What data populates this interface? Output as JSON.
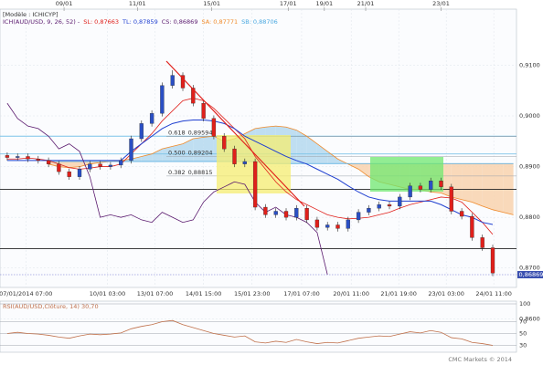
{
  "chart_data": {
    "type": "candlestick",
    "template": "[Modèle : ICHICYP]",
    "indicator": "ICH(AUD/USD, 9, 26, 52) -",
    "legend": [
      {
        "name": "SL:",
        "value": 0.87663,
        "label": "0,87663",
        "color": "#e0201b"
      },
      {
        "name": "TL:",
        "value": 0.87859,
        "label": "0,87859",
        "color": "#1f3fd0"
      },
      {
        "name": "CS:",
        "value": 0.86869,
        "label": "0,86869",
        "color": "#5a1a6e"
      },
      {
        "name": "SA:",
        "value": 0.87771,
        "label": "0,87771",
        "color": "#f08a2a"
      },
      {
        "name": "SB:",
        "value": 0.88706,
        "label": "0,88706",
        "color": "#4aa8e0"
      }
    ],
    "xlim": [
      -0.7,
      49.3
    ],
    "ylim": [
      0.86617,
      0.92106
    ],
    "yticks": [
      {
        "value": 0.86,
        "label": "0,8600"
      },
      {
        "value": 0.87,
        "label": "0,8700"
      },
      {
        "value": 0.88,
        "label": "0,8800"
      },
      {
        "value": 0.89,
        "label": "0,8900"
      },
      {
        "value": 0.9,
        "label": "0,9000"
      },
      {
        "value": 0.91,
        "label": "0,9100"
      }
    ],
    "xticks": [
      {
        "value": 1.8,
        "label": "07/01/2014 07:00"
      },
      {
        "value": 9.7,
        "label": "10/01 03:00"
      },
      {
        "value": 14.3,
        "label": "13/01 07:00"
      },
      {
        "value": 19,
        "label": "14/01 15:00"
      },
      {
        "value": 23.7,
        "label": "15/01 23:00"
      },
      {
        "value": 28.5,
        "label": "17/01 07:00"
      },
      {
        "value": 33.3,
        "label": "20/01 11:00"
      },
      {
        "value": 37.9,
        "label": "21/01 19:00"
      },
      {
        "value": 42.5,
        "label": "23/01 03:00"
      },
      {
        "value": 47.1,
        "label": "24/01 11:00"
      }
    ],
    "top_xticks": [
      {
        "value": 5.5,
        "label": "09/01"
      },
      {
        "value": 12.6,
        "label": "11/01"
      },
      {
        "value": 19.8,
        "label": "15/01"
      },
      {
        "value": 27.2,
        "label": "17/01"
      },
      {
        "value": 30.7,
        "label": "19/01"
      },
      {
        "value": 34.7,
        "label": "21/01"
      },
      {
        "value": 42,
        "label": "23/01"
      }
    ],
    "up_color": "#2a4fc4",
    "down_color": "#e0201b",
    "candles": {
      "open": [
        0.8922,
        0.8918,
        0.892,
        0.8915,
        0.8912,
        0.8905,
        0.889,
        0.888,
        0.8895,
        0.8905,
        0.89,
        0.8903,
        0.8912,
        0.8955,
        0.8985,
        0.9005,
        0.906,
        0.908,
        0.9055,
        0.9025,
        0.8995,
        0.896,
        0.8935,
        0.8905,
        0.891,
        0.882,
        0.8805,
        0.8812,
        0.88,
        0.8818,
        0.8795,
        0.878,
        0.8785,
        0.8778,
        0.8795,
        0.881,
        0.8818,
        0.8825,
        0.8822,
        0.884,
        0.8862,
        0.8855,
        0.8872,
        0.886,
        0.8812,
        0.8802,
        0.876,
        0.874
      ],
      "high": [
        0.8928,
        0.8926,
        0.8926,
        0.8921,
        0.8918,
        0.8911,
        0.8896,
        0.8901,
        0.8911,
        0.8911,
        0.8909,
        0.8918,
        0.8961,
        0.8991,
        0.9011,
        0.9066,
        0.909,
        0.9086,
        0.9061,
        0.9031,
        0.9001,
        0.8966,
        0.8941,
        0.8916,
        0.8916,
        0.8826,
        0.8818,
        0.8818,
        0.8824,
        0.8824,
        0.8801,
        0.8791,
        0.8791,
        0.8801,
        0.8816,
        0.8824,
        0.8831,
        0.8831,
        0.8846,
        0.8868,
        0.8868,
        0.8878,
        0.8878,
        0.8866,
        0.8818,
        0.8808,
        0.8766,
        0.8746
      ],
      "low": [
        0.8912,
        0.8912,
        0.8909,
        0.8906,
        0.8899,
        0.8884,
        0.8874,
        0.8874,
        0.8889,
        0.8894,
        0.8894,
        0.8897,
        0.8906,
        0.8949,
        0.8979,
        0.8999,
        0.9054,
        0.9049,
        0.9019,
        0.8989,
        0.8954,
        0.8929,
        0.8899,
        0.8899,
        0.8814,
        0.8799,
        0.8799,
        0.8794,
        0.8794,
        0.8789,
        0.8774,
        0.8774,
        0.8772,
        0.8772,
        0.8789,
        0.8804,
        0.8812,
        0.8816,
        0.8816,
        0.8834,
        0.8849,
        0.8849,
        0.8854,
        0.8806,
        0.8796,
        0.8754,
        0.8734,
        0.8684
      ],
      "close": [
        0.8918,
        0.892,
        0.8915,
        0.8912,
        0.8905,
        0.889,
        0.888,
        0.8895,
        0.8905,
        0.89,
        0.8903,
        0.8912,
        0.8955,
        0.8985,
        0.9005,
        0.906,
        0.908,
        0.9055,
        0.9025,
        0.8995,
        0.896,
        0.8935,
        0.8905,
        0.891,
        0.882,
        0.8805,
        0.8812,
        0.88,
        0.8818,
        0.8795,
        0.878,
        0.8785,
        0.8778,
        0.8795,
        0.881,
        0.8818,
        0.8825,
        0.8822,
        0.884,
        0.8862,
        0.8855,
        0.8872,
        0.886,
        0.8812,
        0.8802,
        0.876,
        0.874,
        0.869
      ]
    },
    "series": [
      {
        "color": "#e0201b",
        "values": [
          0.8915,
          0.8915,
          0.8917,
          0.8915,
          0.8912,
          0.8905,
          0.8898,
          0.8895,
          0.8897,
          0.89,
          0.89,
          0.8905,
          0.8925,
          0.8945,
          0.8965,
          0.899,
          0.901,
          0.903,
          0.9035,
          0.903,
          0.9015,
          0.8995,
          0.8975,
          0.8955,
          0.892,
          0.8895,
          0.887,
          0.885,
          0.8835,
          0.8825,
          0.8815,
          0.8805,
          0.88,
          0.8797,
          0.8798,
          0.88,
          0.8805,
          0.881,
          0.8818,
          0.8825,
          0.883,
          0.8835,
          0.884,
          0.8838,
          0.883,
          0.881,
          0.879,
          0.87663,
          null,
          null
        ]
      },
      {
        "color": "#1f3fd0",
        "values": [
          0.8912,
          0.8912,
          0.8912,
          0.8912,
          0.8912,
          0.8912,
          0.8912,
          0.8912,
          0.8912,
          0.8912,
          0.8912,
          0.8912,
          0.893,
          0.8945,
          0.896,
          0.8975,
          0.8985,
          0.899,
          0.8992,
          0.8992,
          0.899,
          0.8985,
          0.8975,
          0.896,
          0.895,
          0.894,
          0.893,
          0.892,
          0.8912,
          0.8905,
          0.8895,
          0.8885,
          0.8875,
          0.8862,
          0.885,
          0.884,
          0.8835,
          0.8832,
          0.8832,
          0.8832,
          0.8832,
          0.8832,
          0.8825,
          0.8815,
          0.8805,
          0.88,
          0.879,
          0.87859,
          null,
          null
        ]
      },
      {
        "color": "#5a1a6e",
        "values": [
          0.9025,
          0.8995,
          0.898,
          0.8975,
          0.896,
          0.8935,
          0.8945,
          0.893,
          0.888,
          0.88,
          0.8805,
          0.88,
          0.8805,
          0.8795,
          0.879,
          0.881,
          0.88,
          0.879,
          0.8795,
          0.883,
          0.885,
          0.886,
          0.887,
          0.8865,
          0.883,
          0.881,
          0.882,
          0.8805,
          0.88,
          0.879,
          0.877,
          0.86869,
          null,
          null,
          null,
          null,
          null,
          null,
          null,
          null,
          null,
          null,
          null,
          null,
          null,
          null,
          null,
          null,
          null,
          null
        ]
      },
      {
        "color": "#f08a2a",
        "values": [
          null,
          null,
          null,
          null,
          0.8905,
          0.89,
          0.8898,
          0.89,
          0.8905,
          0.8908,
          0.891,
          0.8912,
          0.8915,
          0.892,
          0.8925,
          0.8935,
          0.894,
          0.8945,
          0.8955,
          0.8958,
          0.896,
          0.895,
          0.8955,
          0.8965,
          0.8975,
          0.8978,
          0.898,
          0.8978,
          0.8972,
          0.896,
          0.8945,
          0.893,
          0.8915,
          0.8905,
          0.8895,
          0.888,
          0.887,
          0.8865,
          0.886,
          0.8855,
          0.8855,
          0.885,
          0.8848,
          0.884,
          0.8835,
          0.883,
          0.8822,
          0.8815,
          0.881,
          0.8805
        ]
      },
      {
        "color": "#4aa8e0",
        "values": [
          null,
          null,
          null,
          null,
          0.891,
          0.891,
          0.891,
          0.891,
          0.891,
          0.891,
          0.891,
          0.891,
          0.891,
          0.891,
          0.891,
          0.891,
          0.891,
          0.891,
          0.891,
          0.891,
          0.891,
          0.891,
          0.891,
          0.891,
          0.891,
          0.8906,
          0.8906,
          0.8906,
          0.8906,
          0.8906,
          0.8906,
          0.8906,
          0.8906,
          0.8906,
          0.8906,
          0.8906,
          0.8906,
          0.8906,
          0.8906,
          0.8906,
          0.8906,
          0.8906,
          0.8906,
          0.8906,
          0.8906,
          0.8906,
          0.8906,
          0.8906,
          0.8906,
          0.8906
        ]
      }
    ],
    "cloud_colors": {
      "up": "#b4d8ee",
      "down": "#f8d2ae"
    },
    "hlines": [
      {
        "value": 0.8855,
        "color": "#222222"
      },
      {
        "value": 0.8738,
        "color": "#222222"
      },
      {
        "value": 0.896,
        "color": "#7cc4e8"
      },
      {
        "value": 0.8925,
        "color": "#7cc4e8"
      }
    ],
    "fibs": [
      {
        "ratio": "0.618",
        "value": 0.89594,
        "label": "0,89594"
      },
      {
        "ratio": "0.500",
        "value": 0.89204,
        "label": "0,89204"
      },
      {
        "ratio": "0.382",
        "value": 0.88815,
        "label": "0,88815"
      }
    ],
    "last_price": {
      "value": 0.86869,
      "label": "0,86869"
    },
    "watermark": "CMC Markets © 2014",
    "rsi": {
      "title": "RSI(AUD/USD,Clôture, 14) 30,70",
      "color": "#c0704a",
      "ylim": [
        20,
        100
      ],
      "yticks": [
        30,
        50,
        70,
        100
      ],
      "values": [
        50,
        52,
        50,
        49,
        47,
        44,
        42,
        46,
        49,
        48,
        49,
        51,
        58,
        62,
        65,
        70,
        72,
        65,
        60,
        55,
        50,
        47,
        44,
        46,
        36,
        34,
        37,
        35,
        40,
        36,
        33,
        35,
        34,
        38,
        42,
        44,
        46,
        45,
        49,
        53,
        51,
        55,
        52,
        43,
        41,
        35,
        33,
        30
      ]
    }
  }
}
